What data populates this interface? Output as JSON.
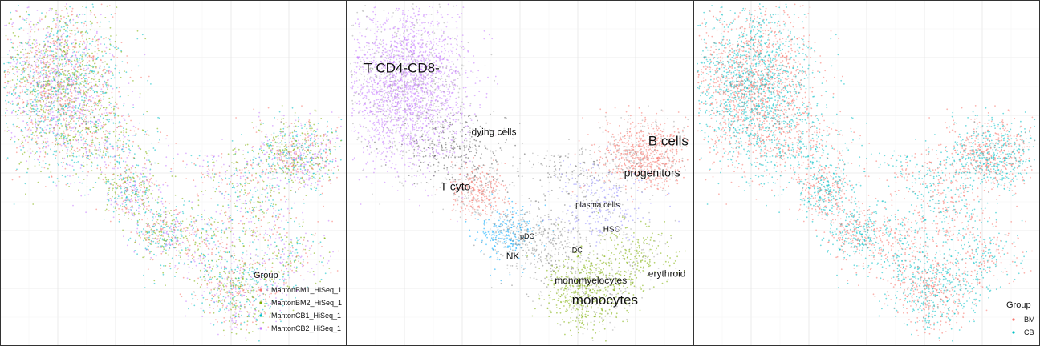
{
  "chart_data": [
    {
      "type": "scatter",
      "title": "",
      "xlabel": "",
      "ylabel": "",
      "grid": true,
      "legend_position": "bottom-right",
      "legend": {
        "title": "Group",
        "entries": [
          {
            "name": "MantonBM1_HiSeq_1",
            "color": "#F8766D"
          },
          {
            "name": "MantonBM2_HiSeq_1",
            "color": "#7CAE00"
          },
          {
            "name": "MantonCB1_HiSeq_1",
            "color": "#00BFC4"
          },
          {
            "name": "MantonCB2_HiSeq_1",
            "color": "#C77CFF"
          }
        ]
      }
    },
    {
      "type": "scatter",
      "title": "",
      "xlabel": "",
      "ylabel": "",
      "grid": true,
      "cluster_labels": [
        {
          "text": "T CD4-CD8-",
          "x": 0.05,
          "y": 0.79,
          "size": "large"
        },
        {
          "text": "dying cells",
          "x": 0.36,
          "y": 0.61,
          "size": "medium"
        },
        {
          "text": "B cells",
          "x": 0.87,
          "y": 0.58,
          "size": "large"
        },
        {
          "text": "progenitors",
          "x": 0.8,
          "y": 0.49,
          "size": "medium-large"
        },
        {
          "text": "T cyto",
          "x": 0.27,
          "y": 0.45,
          "size": "medium-large"
        },
        {
          "text": "plasma cells",
          "x": 0.66,
          "y": 0.4,
          "size": "small"
        },
        {
          "text": "HSC",
          "x": 0.74,
          "y": 0.33,
          "size": "small"
        },
        {
          "text": "pDC",
          "x": 0.5,
          "y": 0.31,
          "size": "tiny"
        },
        {
          "text": "DC",
          "x": 0.65,
          "y": 0.27,
          "size": "tiny"
        },
        {
          "text": "NK",
          "x": 0.46,
          "y": 0.25,
          "size": "medium"
        },
        {
          "text": "erythroid",
          "x": 0.87,
          "y": 0.2,
          "size": "medium"
        },
        {
          "text": "monomyelocytes",
          "x": 0.6,
          "y": 0.18,
          "size": "medium"
        },
        {
          "text": "monocytes",
          "x": 0.65,
          "y": 0.12,
          "size": "large"
        }
      ]
    },
    {
      "type": "scatter",
      "title": "",
      "xlabel": "",
      "ylabel": "",
      "grid": true,
      "legend_position": "bottom-right",
      "legend": {
        "title": "Group",
        "entries": [
          {
            "name": "BM",
            "color": "#F8766D"
          },
          {
            "name": "CB",
            "color": "#00BFC4"
          }
        ]
      }
    }
  ]
}
